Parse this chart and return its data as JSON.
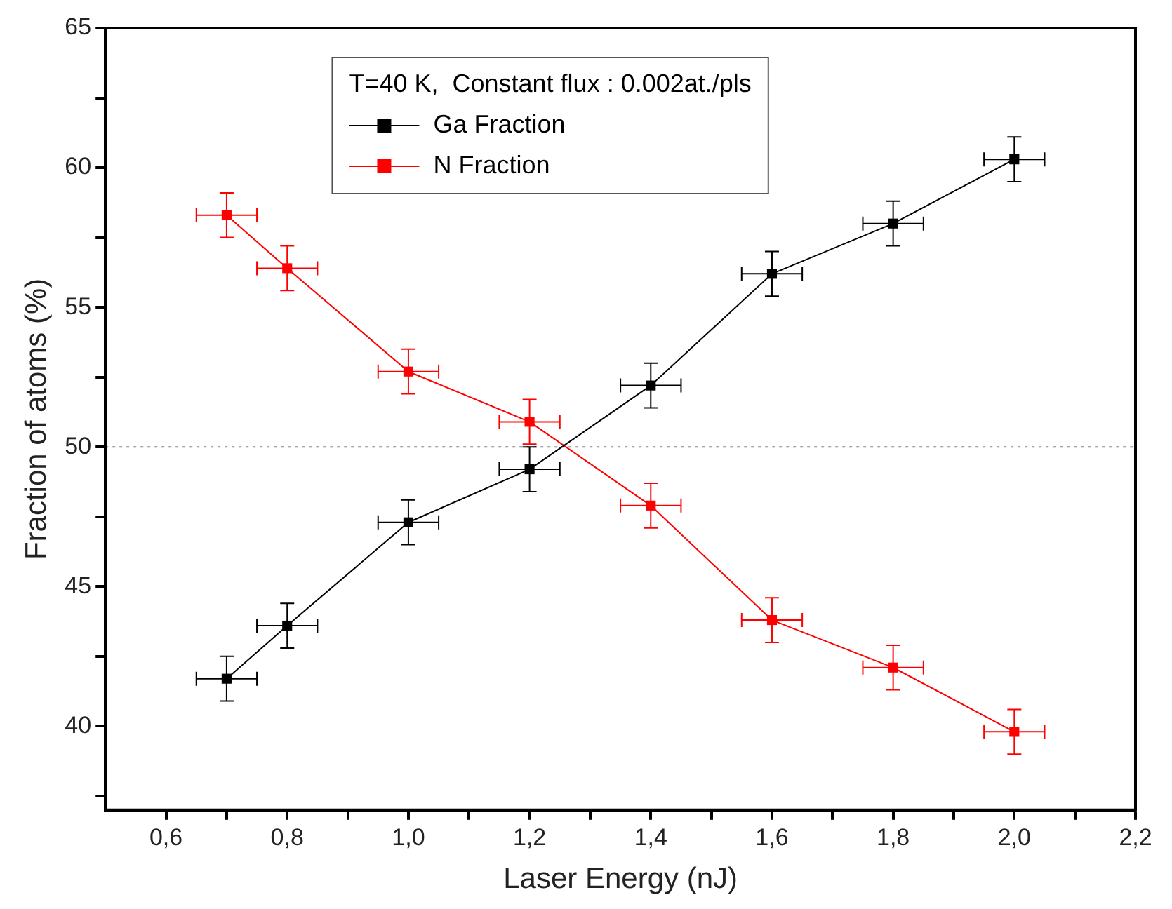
{
  "chart_data": {
    "type": "line",
    "xlabel": "Laser Energy (nJ)",
    "ylabel": "Fraction of atoms (%)",
    "legend_title": "T=40 K,  Constant flux : 0.002at./pls",
    "x": [
      0.7,
      0.8,
      1.0,
      1.2,
      1.4,
      1.6,
      1.8,
      2.0
    ],
    "series": [
      {
        "name": "Ga Fraction",
        "color": "#000000",
        "values": [
          41.7,
          43.6,
          47.3,
          49.2,
          52.2,
          56.2,
          58.0,
          60.3
        ],
        "errors": [
          0.8,
          0.8,
          0.8,
          0.8,
          0.8,
          0.8,
          0.8,
          0.8
        ],
        "xerrors": [
          0.05,
          0.05,
          0.05,
          0.05,
          0.05,
          0.05,
          0.05,
          0.05
        ]
      },
      {
        "name": "N Fraction",
        "color": "#ff0000",
        "values": [
          58.3,
          56.4,
          52.7,
          50.9,
          47.9,
          43.8,
          42.1,
          39.8
        ],
        "errors": [
          0.8,
          0.8,
          0.8,
          0.8,
          0.8,
          0.8,
          0.8,
          0.8
        ],
        "xerrors": [
          0.05,
          0.05,
          0.05,
          0.05,
          0.05,
          0.05,
          0.05,
          0.05
        ]
      }
    ],
    "xlim": [
      0.5,
      2.2
    ],
    "xticks": [
      {
        "value": 0.6,
        "label": "0,6"
      },
      {
        "value": 0.7,
        "label": null
      },
      {
        "value": 0.8,
        "label": "0,8"
      },
      {
        "value": 0.9,
        "label": null
      },
      {
        "value": 1.0,
        "label": "1,0"
      },
      {
        "value": 1.1,
        "label": null
      },
      {
        "value": 1.2,
        "label": "1,2"
      },
      {
        "value": 1.3,
        "label": null
      },
      {
        "value": 1.4,
        "label": "1,4"
      },
      {
        "value": 1.5,
        "label": null
      },
      {
        "value": 1.6,
        "label": "1,6"
      },
      {
        "value": 1.7,
        "label": null
      },
      {
        "value": 1.8,
        "label": "1,8"
      },
      {
        "value": 1.9,
        "label": null
      },
      {
        "value": 2.0,
        "label": "2,0"
      },
      {
        "value": 2.1,
        "label": null
      },
      {
        "value": 2.2,
        "label": "2,2"
      }
    ],
    "ylim": [
      37,
      65
    ],
    "yticks": [
      {
        "value": 37.5,
        "label": null
      },
      40,
      {
        "value": 42.5,
        "label": null
      },
      45,
      {
        "value": 47.5,
        "label": null
      },
      50,
      {
        "value": 52.5,
        "label": null
      },
      55,
      {
        "value": 57.5,
        "label": null
      },
      60,
      {
        "value": 62.5,
        "label": null
      },
      65
    ],
    "ref_lines": [
      {
        "axis": "y",
        "value": 50,
        "color": "#888888",
        "line_style": "dotted"
      }
    ],
    "grid": false,
    "legend": "top",
    "marker": "square",
    "line_style": "solid"
  }
}
